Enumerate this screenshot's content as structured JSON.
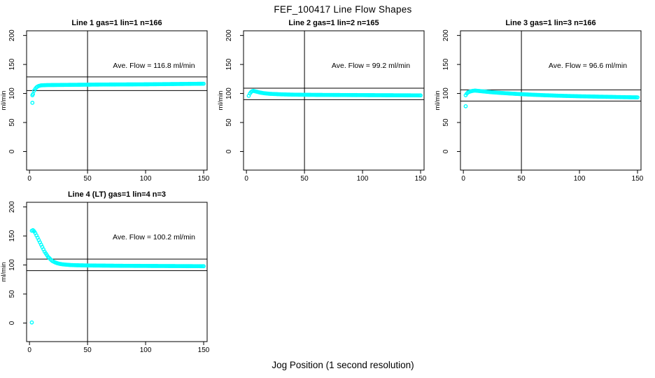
{
  "page": {
    "title": "FEF_100417  Line Flow Shapes",
    "xlabel": "Jog Position (1 second resolution)"
  },
  "chart_data": [
    {
      "id": "line-1",
      "row": 0,
      "col": 0,
      "type": "scatter",
      "title": "Line 1 gas=1 lin=1 n=166",
      "annotation": "Ave. Flow =  116.8  ml/min",
      "ave_flow_ml_min": 116.8,
      "ylabel": "ml/min",
      "x_ticks": [
        0,
        50,
        100,
        150
      ],
      "y_ticks": [
        0,
        50,
        100,
        150,
        200
      ],
      "xlim": [
        -2.5,
        153
      ],
      "ylim": [
        -32,
        208
      ],
      "vline_x": 50,
      "hlines": [
        128.5,
        105.1
      ],
      "marker": "open-circle",
      "marker_color": "#00FFFF",
      "anchors": [
        [
          3,
          99
        ],
        [
          4,
          105
        ],
        [
          5,
          108
        ],
        [
          6,
          110.5
        ],
        [
          7,
          112
        ],
        [
          8,
          113
        ],
        [
          10,
          114
        ],
        [
          15,
          114.5
        ],
        [
          20,
          114.6
        ],
        [
          30,
          114.8
        ],
        [
          40,
          115
        ],
        [
          50,
          115.2
        ],
        [
          60,
          115.4
        ],
        [
          70,
          115.5
        ],
        [
          80,
          115.6
        ],
        [
          90,
          115.7
        ],
        [
          100,
          115.8
        ],
        [
          110,
          116
        ],
        [
          120,
          116.2
        ],
        [
          130,
          116.4
        ],
        [
          140,
          116.6
        ],
        [
          150,
          116.8
        ]
      ],
      "outliers": [
        [
          2.5,
          97
        ],
        [
          2.5,
          84
        ]
      ]
    },
    {
      "id": "line-2",
      "row": 0,
      "col": 1,
      "type": "scatter",
      "title": "Line 2 gas=1 lin=2 n=165",
      "annotation": "Ave. Flow =  99.2  ml/min",
      "ave_flow_ml_min": 99.2,
      "ylabel": "ml/min",
      "x_ticks": [
        0,
        50,
        100,
        150
      ],
      "y_ticks": [
        0,
        50,
        100,
        150,
        200
      ],
      "xlim": [
        -2.5,
        153
      ],
      "ylim": [
        -32,
        208
      ],
      "vline_x": 50,
      "hlines": [
        109.1,
        89.3
      ],
      "marker": "open-circle",
      "marker_color": "#00FFFF",
      "anchors": [
        [
          2,
          96
        ],
        [
          3,
          100
        ],
        [
          4,
          102.5
        ],
        [
          5,
          104
        ],
        [
          6,
          104.5
        ],
        [
          7,
          104
        ],
        [
          8,
          103.5
        ],
        [
          10,
          102.5
        ],
        [
          12,
          101.5
        ],
        [
          15,
          100.5
        ],
        [
          20,
          99.5
        ],
        [
          25,
          99
        ],
        [
          30,
          98.5
        ],
        [
          40,
          98
        ],
        [
          50,
          97.8
        ],
        [
          60,
          97.6
        ],
        [
          70,
          97.5
        ],
        [
          80,
          97.4
        ],
        [
          90,
          97.3
        ],
        [
          100,
          97.2
        ],
        [
          110,
          97.1
        ],
        [
          120,
          97
        ],
        [
          130,
          96.9
        ],
        [
          140,
          96.8
        ],
        [
          150,
          96.7
        ]
      ],
      "outliers": []
    },
    {
      "id": "line-3",
      "row": 0,
      "col": 2,
      "type": "scatter",
      "title": "Line 3 gas=1 lin=3 n=166",
      "annotation": "Ave. Flow =  96.6  ml/min",
      "ave_flow_ml_min": 96.6,
      "ylabel": "ml/min",
      "x_ticks": [
        0,
        50,
        100,
        150
      ],
      "y_ticks": [
        0,
        50,
        100,
        150,
        200
      ],
      "xlim": [
        -2.5,
        153
      ],
      "ylim": [
        -32,
        208
      ],
      "vline_x": 50,
      "hlines": [
        106.3,
        86.9
      ],
      "marker": "open-circle",
      "marker_color": "#00FFFF",
      "anchors": [
        [
          2,
          97
        ],
        [
          3,
          100
        ],
        [
          4,
          102
        ],
        [
          6,
          103.5
        ],
        [
          8,
          104.5
        ],
        [
          10,
          105
        ],
        [
          12,
          104.6
        ],
        [
          15,
          104
        ],
        [
          20,
          103
        ],
        [
          25,
          102
        ],
        [
          30,
          101.3
        ],
        [
          40,
          100
        ],
        [
          50,
          98.8
        ],
        [
          60,
          97.8
        ],
        [
          70,
          97
        ],
        [
          80,
          96.3
        ],
        [
          90,
          95.7
        ],
        [
          100,
          95.2
        ],
        [
          110,
          94.8
        ],
        [
          120,
          94.4
        ],
        [
          130,
          94
        ],
        [
          140,
          93.6
        ],
        [
          150,
          93.3
        ]
      ],
      "outliers": [
        [
          2,
          78
        ]
      ]
    },
    {
      "id": "line-4-lt",
      "row": 1,
      "col": 0,
      "type": "scatter",
      "title": "Line 4 (LT) gas=1 lin=4 n=3",
      "annotation": "Ave. Flow =  100.2  ml/min",
      "ave_flow_ml_min": 100.2,
      "ylabel": "ml/min",
      "x_ticks": [
        0,
        50,
        100,
        150
      ],
      "y_ticks": [
        0,
        50,
        100,
        150,
        200
      ],
      "xlim": [
        -2.5,
        153
      ],
      "ylim": [
        -32,
        208
      ],
      "vline_x": 50,
      "hlines": [
        110.2,
        90.2
      ],
      "marker": "open-circle",
      "marker_color": "#00FFFF",
      "anchors": [
        [
          2,
          159
        ],
        [
          3,
          160
        ],
        [
          4,
          158
        ],
        [
          5,
          155
        ],
        [
          6,
          151
        ],
        [
          7,
          147
        ],
        [
          8,
          143
        ],
        [
          9,
          139
        ],
        [
          10,
          135
        ],
        [
          11,
          131
        ],
        [
          12,
          127
        ],
        [
          13,
          123
        ],
        [
          14,
          120
        ],
        [
          15,
          117
        ],
        [
          16,
          114
        ],
        [
          17,
          112
        ],
        [
          18,
          110
        ],
        [
          19,
          108
        ],
        [
          20,
          106.5
        ],
        [
          22,
          104.5
        ],
        [
          24,
          103
        ],
        [
          26,
          102
        ],
        [
          28,
          101.3
        ],
        [
          30,
          100.8
        ],
        [
          35,
          100
        ],
        [
          40,
          99.6
        ],
        [
          50,
          99.2
        ],
        [
          60,
          99
        ],
        [
          70,
          98.8
        ],
        [
          80,
          98.6
        ],
        [
          90,
          98.5
        ],
        [
          100,
          98.4
        ],
        [
          110,
          98.3
        ],
        [
          120,
          98.2
        ],
        [
          130,
          98.1
        ],
        [
          140,
          98
        ],
        [
          150,
          97.9
        ]
      ],
      "outliers": [
        [
          2,
          1
        ]
      ]
    }
  ]
}
